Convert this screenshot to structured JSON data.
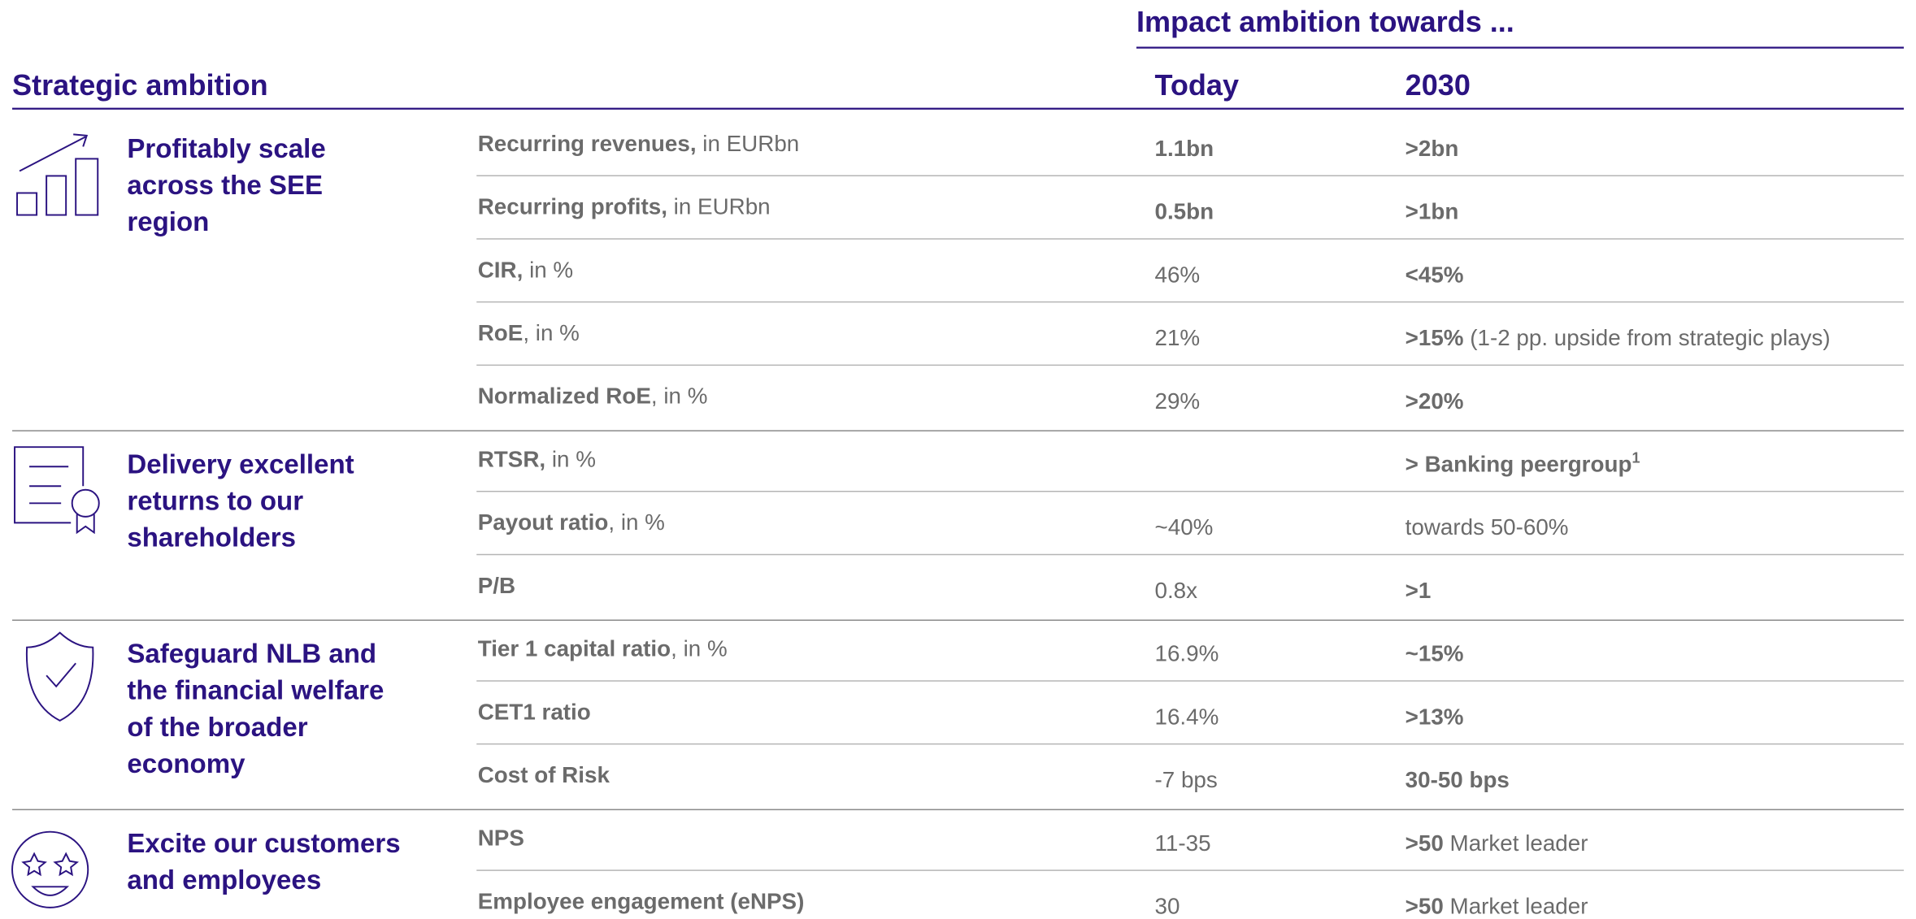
{
  "header": {
    "impact_title": "Impact ambition towards ...",
    "left_title": "Strategic ambition",
    "col_today": "Today",
    "col_2030": "2030"
  },
  "groups": [
    {
      "label": [
        "Profitably scale",
        "across the SEE",
        "region"
      ],
      "rows": [
        {
          "metric": {
            "bold": "Recurring revenues,",
            "text": " in EURbn"
          },
          "today": {
            "bold": "1.1bn"
          },
          "target": {
            "bold": ">2bn"
          }
        },
        {
          "metric": {
            "bold": "Recurring profits,",
            "text": " in EURbn"
          },
          "today": {
            "bold": "0.5bn"
          },
          "target": {
            "bold": ">1bn"
          }
        },
        {
          "metric": {
            "bold": "CIR,",
            "text": " in %"
          },
          "today": {
            "text": "46%"
          },
          "target": {
            "bold": "<45%"
          }
        },
        {
          "metric": {
            "bold": "RoE",
            "text": ", in %"
          },
          "today": {
            "text": "21%"
          },
          "target": {
            "bold": ">15%",
            "text": " (1-2 pp. upside from strategic plays)"
          }
        },
        {
          "metric": {
            "bold": "Normalized RoE",
            "text": ", in %"
          },
          "today": {
            "text": "29%"
          },
          "target": {
            "bold": ">20%"
          }
        }
      ]
    },
    {
      "label": [
        "Delivery excellent",
        "returns to our",
        "shareholders"
      ],
      "rows": [
        {
          "metric": {
            "bold": "RTSR,",
            "text": " in %"
          },
          "target": {
            "bold": "> Banking peergroup",
            "sup": "1"
          }
        },
        {
          "metric": {
            "bold": "Payout ratio",
            "text": ", in %"
          },
          "today": {
            "text": "~40%"
          },
          "target": {
            "text": "towards 50-60%"
          }
        },
        {
          "metric": {
            "bold": "P/B"
          },
          "today": {
            "text": "0.8x"
          },
          "target": {
            "bold": ">1"
          }
        }
      ]
    },
    {
      "label": [
        "Safeguard NLB and",
        "the financial welfare",
        "of the broader",
        "economy"
      ],
      "rows": [
        {
          "metric": {
            "bold": "Tier 1 capital ratio",
            "text": ", in %"
          },
          "today": {
            "text": "16.9%"
          },
          "target": {
            "bold": "~15%"
          }
        },
        {
          "metric": {
            "bold": "CET1 ratio"
          },
          "today": {
            "text": "16.4%"
          },
          "target": {
            "bold": ">13%"
          }
        },
        {
          "metric": {
            "bold": "Cost of Risk"
          },
          "today": {
            "text": "-7 bps"
          },
          "target": {
            "bold": "30-50 bps"
          }
        }
      ]
    },
    {
      "label": [
        "Excite our customers",
        "and employees"
      ],
      "rows": [
        {
          "metric": {
            "bold": "NPS"
          },
          "today": {
            "text": "11-35"
          },
          "target": {
            "bold": ">50",
            "text": " Market leader"
          }
        },
        {
          "metric": {
            "bold": "Employee engagement (eNPS)"
          },
          "today": {
            "text": "30"
          },
          "target": {
            "bold": ">50",
            "text": " Market leader"
          }
        }
      ]
    }
  ]
}
